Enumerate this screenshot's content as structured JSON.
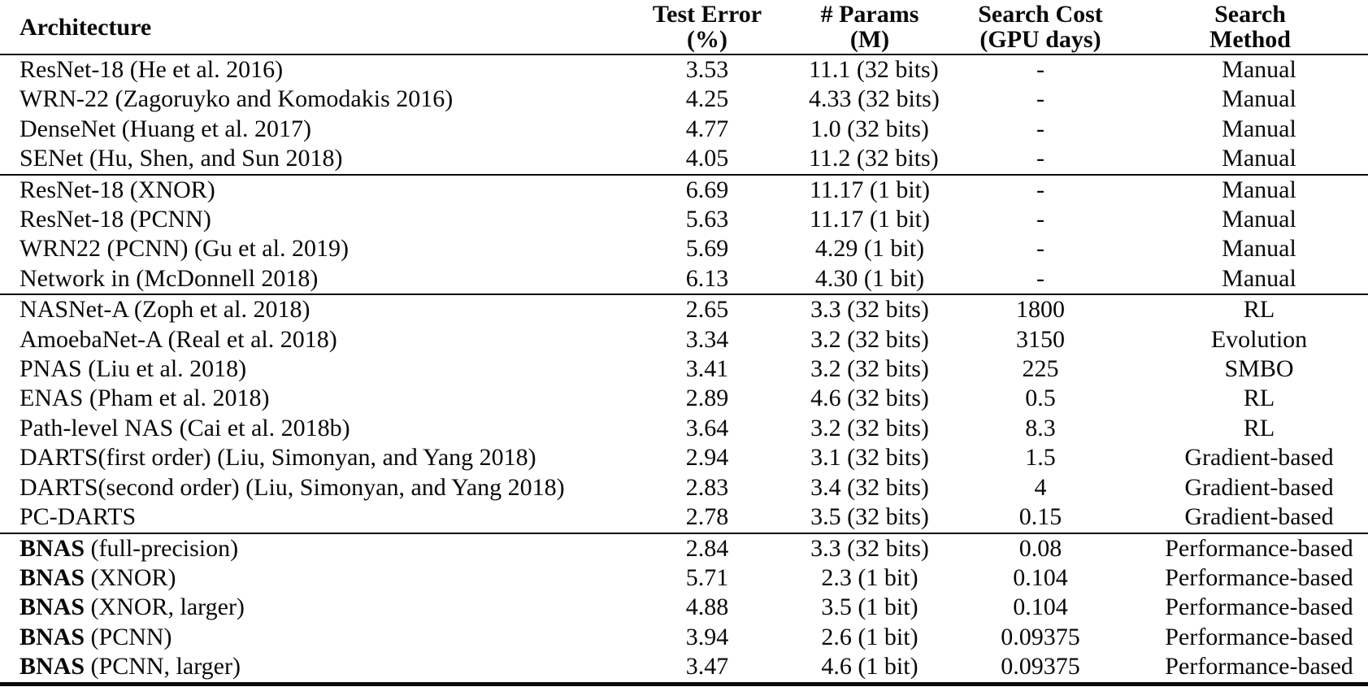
{
  "table": {
    "columns": [
      {
        "label": "Architecture",
        "sub": ""
      },
      {
        "label": "Test Error",
        "sub": "(%)"
      },
      {
        "label": "# Params",
        "sub": "(M)"
      },
      {
        "label": "Search Cost",
        "sub": "(GPU days)"
      },
      {
        "label": "Search",
        "sub": "Method"
      }
    ],
    "groups": [
      {
        "rows": [
          {
            "arch_bold": "",
            "arch_rest": "ResNet-18 (He et al. 2016)",
            "test_error": "3.53",
            "params": "11.1 (32 bits)",
            "cost": "-",
            "method": "Manual"
          },
          {
            "arch_bold": "",
            "arch_rest": "WRN-22 (Zagoruyko and Komodakis 2016)",
            "test_error": "4.25",
            "params": "4.33 (32 bits)",
            "cost": "-",
            "method": "Manual"
          },
          {
            "arch_bold": "",
            "arch_rest": "DenseNet (Huang et al. 2017)",
            "test_error": "4.77",
            "params": "1.0 (32 bits)",
            "cost": "-",
            "method": "Manual"
          },
          {
            "arch_bold": "",
            "arch_rest": "SENet (Hu, Shen, and Sun 2018)",
            "test_error": "4.05",
            "params": "11.2 (32 bits)",
            "cost": "-",
            "method": "Manual"
          }
        ]
      },
      {
        "rows": [
          {
            "arch_bold": "",
            "arch_rest": "ResNet-18 (XNOR)",
            "test_error": "6.69",
            "params": "11.17 (1 bit)",
            "cost": "-",
            "method": "Manual"
          },
          {
            "arch_bold": "",
            "arch_rest": "ResNet-18 (PCNN)",
            "test_error": "5.63",
            "params": "11.17 (1 bit)",
            "cost": "-",
            "method": "Manual"
          },
          {
            "arch_bold": "",
            "arch_rest": "WRN22 (PCNN) (Gu et al. 2019)",
            "test_error": "5.69",
            "params": "4.29 (1 bit)",
            "cost": "-",
            "method": "Manual"
          },
          {
            "arch_bold": "",
            "arch_rest": "Network in (McDonnell 2018)",
            "test_error": "6.13",
            "params": "4.30 (1 bit)",
            "cost": "-",
            "method": "Manual"
          }
        ]
      },
      {
        "rows": [
          {
            "arch_bold": "",
            "arch_rest": "NASNet-A (Zoph et al. 2018)",
            "test_error": "2.65",
            "params": "3.3 (32 bits)",
            "cost": "1800",
            "method": "RL"
          },
          {
            "arch_bold": "",
            "arch_rest": "AmoebaNet-A (Real et al. 2018)",
            "test_error": "3.34",
            "params": "3.2 (32 bits)",
            "cost": "3150",
            "method": "Evolution"
          },
          {
            "arch_bold": "",
            "arch_rest": "PNAS (Liu et al. 2018)",
            "test_error": "3.41",
            "params": "3.2 (32 bits)",
            "cost": "225",
            "method": "SMBO"
          },
          {
            "arch_bold": "",
            "arch_rest": "ENAS (Pham et al. 2018)",
            "test_error": "2.89",
            "params": "4.6 (32 bits)",
            "cost": "0.5",
            "method": "RL"
          },
          {
            "arch_bold": "",
            "arch_rest": "Path-level NAS (Cai et al. 2018b)",
            "test_error": "3.64",
            "params": "3.2 (32 bits)",
            "cost": "8.3",
            "method": "RL"
          },
          {
            "arch_bold": "",
            "arch_rest": "DARTS(first order) (Liu, Simonyan, and Yang 2018)",
            "test_error": "2.94",
            "params": "3.1 (32 bits)",
            "cost": "1.5",
            "method": "Gradient-based"
          },
          {
            "arch_bold": "",
            "arch_rest": "DARTS(second order) (Liu, Simonyan, and Yang 2018)",
            "test_error": "2.83",
            "params": "3.4 (32 bits)",
            "cost": "4",
            "method": "Gradient-based"
          },
          {
            "arch_bold": "",
            "arch_rest": "PC-DARTS",
            "test_error": "2.78",
            "params": "3.5 (32 bits)",
            "cost": "0.15",
            "method": "Gradient-based"
          }
        ]
      },
      {
        "rows": [
          {
            "arch_bold": "BNAS",
            "arch_rest": " (full-precision)",
            "test_error": "2.84",
            "params": "3.3 (32 bits)",
            "cost": "0.08",
            "method": "Performance-based"
          },
          {
            "arch_bold": "BNAS",
            "arch_rest": " (XNOR)",
            "test_error": "5.71",
            "params": "2.3 (1 bit)",
            "cost": "0.104",
            "method": "Performance-based"
          },
          {
            "arch_bold": "BNAS",
            "arch_rest": " (XNOR, larger)",
            "test_error": "4.88",
            "params": "3.5 (1 bit)",
            "cost": "0.104",
            "method": "Performance-based"
          },
          {
            "arch_bold": "BNAS",
            "arch_rest": " (PCNN)",
            "test_error": "3.94",
            "params": "2.6 (1 bit)",
            "cost": "0.09375",
            "method": "Performance-based"
          },
          {
            "arch_bold": "BNAS",
            "arch_rest": " (PCNN, larger)",
            "test_error": "3.47",
            "params": "4.6 (1 bit)",
            "cost": "0.09375",
            "method": "Performance-based"
          }
        ]
      }
    ]
  }
}
